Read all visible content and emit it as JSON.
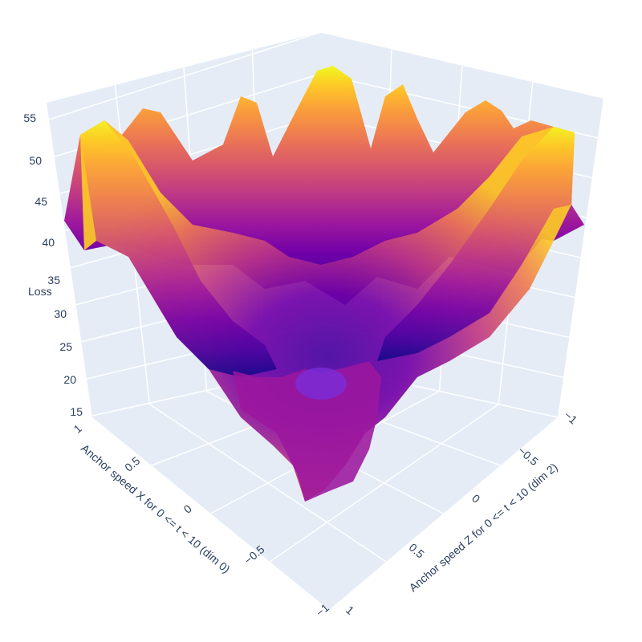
{
  "chart_data": {
    "type": "surface",
    "colorscale": [
      "#0d0887",
      "#46039f",
      "#7201a8",
      "#9c179e",
      "#bd3786",
      "#d8576b",
      "#ed7953",
      "#fb9f3a",
      "#fdca26",
      "#f0f921"
    ],
    "axis_bg": "#e5ecf6",
    "grid_color": "#ffffff",
    "x_axis": {
      "title": "Anchor speed X for 0 <= t < 10 (dim 0)",
      "range": [
        -1,
        1
      ],
      "ticks": [
        "1",
        "0.5",
        "0",
        "−0.5",
        "−1"
      ]
    },
    "z_axis_horizontal": {
      "title": "Anchor speed Z for 0 <= t < 10 (dim 2)",
      "range": [
        -1,
        1
      ],
      "ticks": [
        "1",
        "0.5",
        "0",
        "−0.5",
        "−1"
      ]
    },
    "y_axis": {
      "title": "Loss",
      "range": [
        15,
        55
      ],
      "ticks": [
        "15",
        "20",
        "25",
        "30",
        "35",
        "40",
        "45",
        "50",
        "55"
      ]
    },
    "surface_summary": {
      "minimum_loss": 15,
      "minimum_at": [
        0,
        0
      ],
      "max_loss": 55,
      "peaks_along_edges": 8
    }
  }
}
